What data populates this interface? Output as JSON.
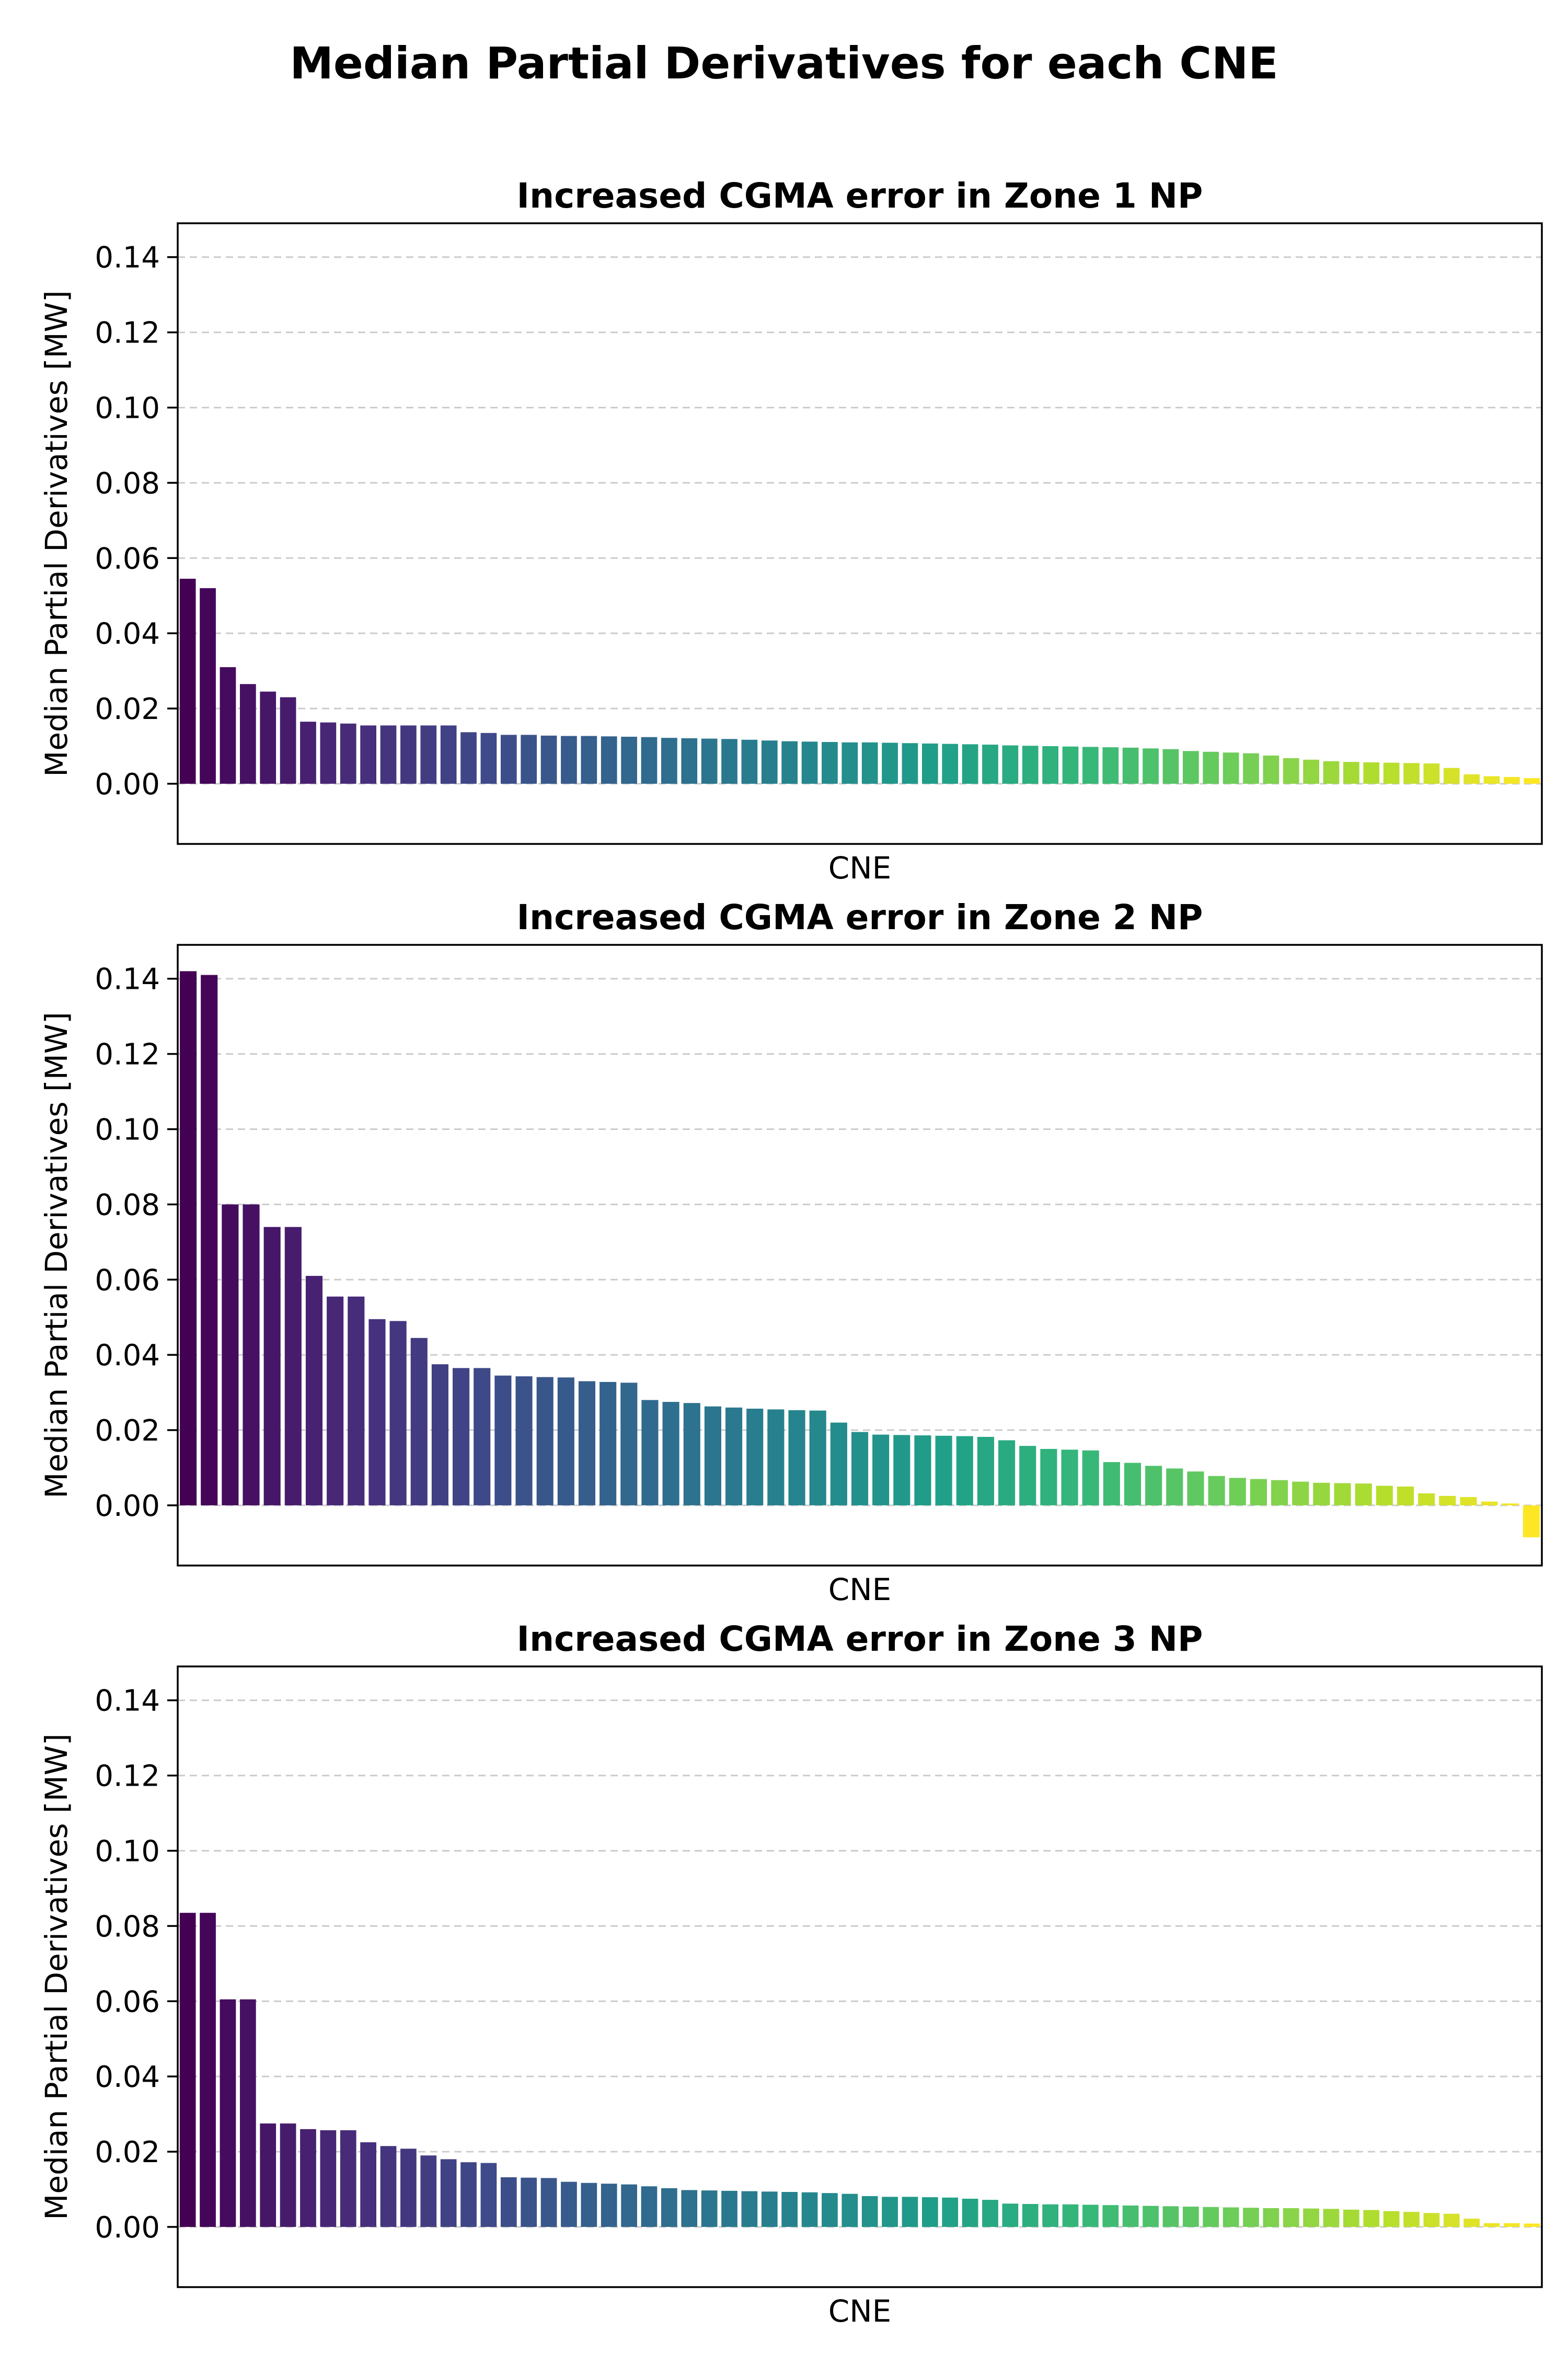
{
  "figure": {
    "title": "Median Partial Derivatives for each CNE"
  },
  "chart_data": [
    {
      "type": "bar",
      "title": "Increased CGMA error in Zone 1 NP",
      "xlabel": "CNE",
      "ylabel": "Median Partial Derivatives [MW]",
      "ylim": [
        -0.016,
        0.149
      ],
      "yticks": [
        "0.00",
        "0.02",
        "0.04",
        "0.06",
        "0.08",
        "0.10",
        "0.12",
        "0.14"
      ],
      "grid": "y-dashed",
      "colormap": "viridis",
      "values": [
        0.0545,
        0.052,
        0.031,
        0.0265,
        0.0245,
        0.023,
        0.0165,
        0.0163,
        0.016,
        0.0155,
        0.0155,
        0.0155,
        0.0155,
        0.0155,
        0.0137,
        0.0135,
        0.013,
        0.013,
        0.0128,
        0.0127,
        0.0127,
        0.0126,
        0.0125,
        0.0124,
        0.0122,
        0.0121,
        0.012,
        0.0119,
        0.0117,
        0.0115,
        0.0113,
        0.0112,
        0.0111,
        0.011,
        0.011,
        0.0109,
        0.0108,
        0.0107,
        0.0106,
        0.0105,
        0.0104,
        0.0102,
        0.0101,
        0.01,
        0.0099,
        0.0098,
        0.0097,
        0.0096,
        0.0094,
        0.0092,
        0.0087,
        0.0085,
        0.0083,
        0.0081,
        0.0075,
        0.0068,
        0.0064,
        0.006,
        0.0058,
        0.0057,
        0.0056,
        0.0055,
        0.0054,
        0.0042,
        0.0025,
        0.002,
        0.0018,
        0.0015
      ]
    },
    {
      "type": "bar",
      "title": "Increased CGMA error in Zone 2 NP",
      "xlabel": "CNE",
      "ylabel": "Median Partial Derivatives [MW]",
      "ylim": [
        -0.016,
        0.149
      ],
      "yticks": [
        "0.00",
        "0.02",
        "0.04",
        "0.06",
        "0.08",
        "0.10",
        "0.12",
        "0.14"
      ],
      "grid": "y-dashed",
      "colormap": "viridis",
      "values": [
        0.142,
        0.141,
        0.08,
        0.08,
        0.074,
        0.074,
        0.061,
        0.0555,
        0.0555,
        0.0495,
        0.049,
        0.0445,
        0.0375,
        0.0365,
        0.0365,
        0.0345,
        0.0343,
        0.0341,
        0.034,
        0.033,
        0.0328,
        0.0326,
        0.028,
        0.0275,
        0.0272,
        0.0263,
        0.026,
        0.0257,
        0.0255,
        0.0253,
        0.0252,
        0.022,
        0.0195,
        0.0188,
        0.0187,
        0.0186,
        0.0185,
        0.0184,
        0.0182,
        0.0173,
        0.0158,
        0.015,
        0.0148,
        0.0146,
        0.0115,
        0.0113,
        0.0105,
        0.0098,
        0.009,
        0.0078,
        0.0073,
        0.007,
        0.0067,
        0.0063,
        0.006,
        0.0059,
        0.0058,
        0.0052,
        0.005,
        0.0032,
        0.0025,
        0.0022,
        0.001,
        0.0005,
        -0.0085
      ]
    },
    {
      "type": "bar",
      "title": "Increased CGMA error in Zone 3 NP",
      "xlabel": "CNE",
      "ylabel": "Median Partial Derivatives [MW]",
      "ylim": [
        -0.016,
        0.149
      ],
      "yticks": [
        "0.00",
        "0.02",
        "0.04",
        "0.06",
        "0.08",
        "0.10",
        "0.12",
        "0.14"
      ],
      "grid": "y-dashed",
      "colormap": "viridis",
      "values": [
        0.0835,
        0.0835,
        0.0605,
        0.0605,
        0.0275,
        0.0275,
        0.026,
        0.0257,
        0.0257,
        0.0225,
        0.0215,
        0.0208,
        0.019,
        0.018,
        0.0172,
        0.017,
        0.0132,
        0.0131,
        0.013,
        0.012,
        0.0117,
        0.0115,
        0.0113,
        0.0108,
        0.0103,
        0.0098,
        0.0097,
        0.0096,
        0.0095,
        0.0094,
        0.0093,
        0.0092,
        0.009,
        0.0088,
        0.0082,
        0.008,
        0.008,
        0.0079,
        0.0078,
        0.0075,
        0.0072,
        0.0062,
        0.0061,
        0.006,
        0.006,
        0.0059,
        0.0058,
        0.0057,
        0.0056,
        0.0055,
        0.0054,
        0.0053,
        0.0052,
        0.0051,
        0.005,
        0.005,
        0.0049,
        0.0048,
        0.0046,
        0.0045,
        0.0042,
        0.004,
        0.0037,
        0.0035,
        0.0022,
        0.001,
        0.001,
        0.0009
      ]
    }
  ]
}
